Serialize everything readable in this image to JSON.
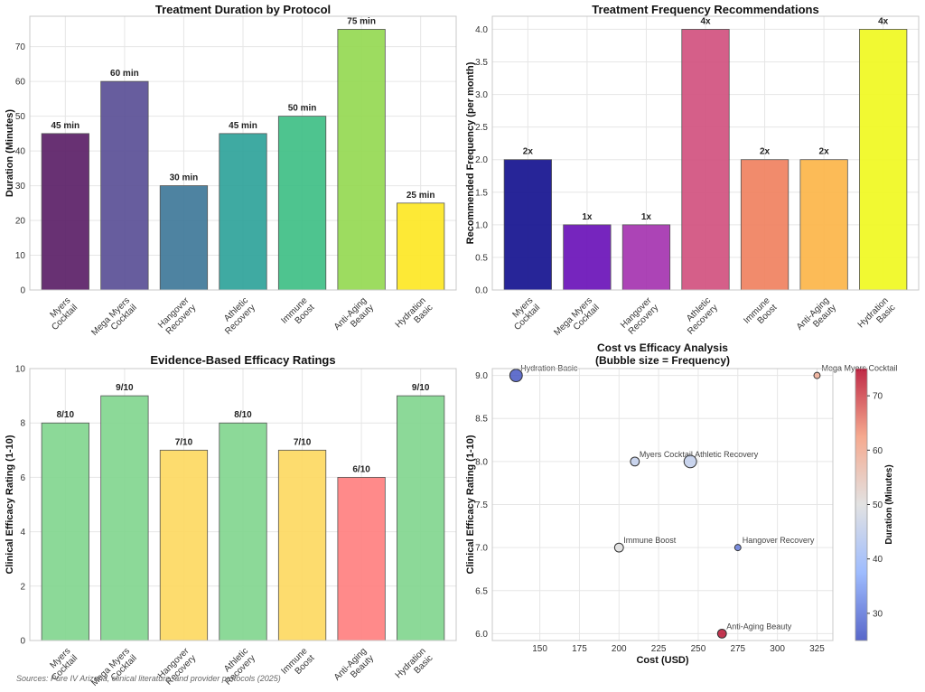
{
  "chart_data": [
    {
      "type": "bar",
      "title": "Treatment Duration by Protocol",
      "xlabel": "",
      "ylabel": "Duration (Minutes)",
      "categories": [
        [
          "Myers",
          "Cocktail"
        ],
        [
          "Mega Myers",
          "Cocktail"
        ],
        [
          "Hangover",
          "Recovery"
        ],
        [
          "Athletic",
          "Recovery"
        ],
        [
          "Immune",
          "Boost"
        ],
        [
          "Anti-Aging",
          "Beauty"
        ],
        [
          "Hydration",
          "Basic"
        ]
      ],
      "values": [
        45,
        60,
        30,
        45,
        50,
        75,
        25
      ],
      "value_labels": [
        "45 min",
        "60 min",
        "30 min",
        "45 min",
        "50 min",
        "75 min",
        "25 min"
      ],
      "colors": [
        "#5b1f67",
        "#5a4f96",
        "#3f7899",
        "#2fa39a",
        "#3fbf86",
        "#95d952",
        "#fde725"
      ],
      "ylim": [
        0,
        78.75
      ],
      "yticks": [
        0,
        10,
        20,
        30,
        40,
        50,
        60,
        70
      ],
      "grid": true
    },
    {
      "type": "bar",
      "title": "Treatment Frequency Recommendations",
      "xlabel": "",
      "ylabel": "Recommended Frequency (per month)",
      "categories": [
        [
          "Myers",
          "Cocktail"
        ],
        [
          "Mega Myers",
          "Cocktail"
        ],
        [
          "Hangover",
          "Recovery"
        ],
        [
          "Athletic",
          "Recovery"
        ],
        [
          "Immune",
          "Boost"
        ],
        [
          "Anti-Aging",
          "Beauty"
        ],
        [
          "Hydration",
          "Basic"
        ]
      ],
      "values": [
        2,
        1,
        1,
        4,
        2,
        2,
        4
      ],
      "value_labels": [
        "2x",
        "1x",
        "1x",
        "4x",
        "2x",
        "2x",
        "4x"
      ],
      "colors": [
        "#15128f",
        "#6a12b8",
        "#a534b0",
        "#d1517f",
        "#f08160",
        "#fcb549",
        "#f0f921"
      ],
      "ylim": [
        0,
        4.2
      ],
      "yticks": [
        0.0,
        0.5,
        1.0,
        1.5,
        2.0,
        2.5,
        3.0,
        3.5,
        4.0
      ],
      "grid": true
    },
    {
      "type": "bar",
      "title": "Evidence-Based Efficacy Ratings",
      "xlabel": "",
      "ylabel": "Clinical Efficacy Rating (1-10)",
      "categories": [
        [
          "Myers",
          "Cocktail"
        ],
        [
          "Mega Myers",
          "Cocktail"
        ],
        [
          "Hangover",
          "Recovery"
        ],
        [
          "Athletic",
          "Recovery"
        ],
        [
          "Immune",
          "Boost"
        ],
        [
          "Anti-Aging",
          "Beauty"
        ],
        [
          "Hydration",
          "Basic"
        ]
      ],
      "values": [
        8,
        9,
        7,
        8,
        7,
        6,
        9
      ],
      "value_labels": [
        "8/10",
        "9/10",
        "7/10",
        "8/10",
        "7/10",
        "6/10",
        "9/10"
      ],
      "colors": [
        "#82d68f",
        "#82d68f",
        "#fdd962",
        "#82d68f",
        "#fdd962",
        "#ff8080",
        "#82d68f"
      ],
      "ylim": [
        0,
        10
      ],
      "yticks": [
        0,
        2,
        4,
        6,
        8,
        10
      ],
      "grid": true
    },
    {
      "type": "scatter",
      "title": "Cost vs Efficacy Analysis",
      "subtitle": "(Bubble size = Frequency)",
      "xlabel": "Cost (USD)",
      "ylabel": "Clinical Efficacy Rating (1-10)",
      "xlim": [
        120,
        335
      ],
      "ylim": [
        5.92,
        9.08
      ],
      "xticks": [
        150,
        175,
        200,
        225,
        250,
        275,
        300,
        325
      ],
      "yticks": [
        6.0,
        6.5,
        7.0,
        7.5,
        8.0,
        8.5,
        9.0
      ],
      "grid": true,
      "points": [
        {
          "label": "Myers Cocktail",
          "x": 210,
          "y": 8,
          "frequency": 2,
          "duration": 45
        },
        {
          "label": "Mega Myers Cocktail",
          "x": 325,
          "y": 9,
          "frequency": 1,
          "duration": 60
        },
        {
          "label": "Hangover Recovery",
          "x": 275,
          "y": 7,
          "frequency": 1,
          "duration": 30
        },
        {
          "label": "Athletic Recovery",
          "x": 245,
          "y": 8,
          "frequency": 4,
          "duration": 45
        },
        {
          "label": "Immune Boost",
          "x": 200,
          "y": 7,
          "frequency": 2,
          "duration": 50
        },
        {
          "label": "Anti-Aging Beauty",
          "x": 265,
          "y": 6,
          "frequency": 2,
          "duration": 75
        },
        {
          "label": "Hydration Basic",
          "x": 135,
          "y": 9,
          "frequency": 4,
          "duration": 25
        }
      ],
      "colorbar": {
        "label": "Duration (Minutes)",
        "range": [
          25,
          75
        ],
        "ticks": [
          30,
          40,
          50,
          60,
          70
        ],
        "colormap": "coolwarm"
      }
    }
  ],
  "footer": {
    "source": "Sources: Pure IV Arizona, clinical literature, and provider protocols (2025)"
  }
}
